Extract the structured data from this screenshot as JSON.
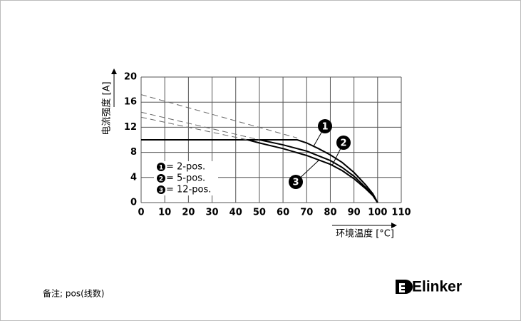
{
  "chart_data": {
    "type": "line",
    "y_label": "电流强度 [A]",
    "x_label": "环境温度 [°C]",
    "note": "备注; pos(线数)",
    "brand": "Elinker",
    "xlim": [
      0,
      110
    ],
    "xticks": [
      0,
      10,
      20,
      30,
      40,
      50,
      60,
      70,
      80,
      90,
      100,
      110
    ],
    "ylim": [
      0,
      20
    ],
    "yticks": [
      0,
      4,
      8,
      12,
      16,
      20
    ],
    "grid": true,
    "series": [
      {
        "label": "1",
        "name": "= 2-pos.",
        "color": "#000000",
        "x": [
          0,
          66,
          70,
          75,
          80,
          85,
          90,
          95,
          98,
          100
        ],
        "values": [
          10,
          10,
          9.5,
          8.6,
          7.6,
          6.4,
          4.8,
          2.8,
          1.4,
          0
        ],
        "extension": {
          "x": [
            0,
            66
          ],
          "values": [
            17.2,
            10.3
          ]
        }
      },
      {
        "label": "2",
        "name": "= 5-pos.",
        "color": "#000000",
        "x": [
          50,
          55,
          60,
          70,
          80,
          85,
          90,
          95,
          98,
          100
        ],
        "values": [
          10,
          9.6,
          9.2,
          8.2,
          6.7,
          5.6,
          4.2,
          2.4,
          1.2,
          0
        ],
        "extension": {
          "x": [
            0,
            50
          ],
          "values": [
            14.4,
            10
          ]
        }
      },
      {
        "label": "3",
        "name": "= 12-pos.",
        "color": "#000000",
        "x": [
          45,
          50,
          60,
          70,
          80,
          85,
          90,
          95,
          98,
          100
        ],
        "values": [
          10,
          9.5,
          8.6,
          7.5,
          6.1,
          5.1,
          3.8,
          2.2,
          1.1,
          0
        ],
        "extension": {
          "x": [
            0,
            45
          ],
          "values": [
            13.6,
            10
          ]
        }
      }
    ]
  }
}
